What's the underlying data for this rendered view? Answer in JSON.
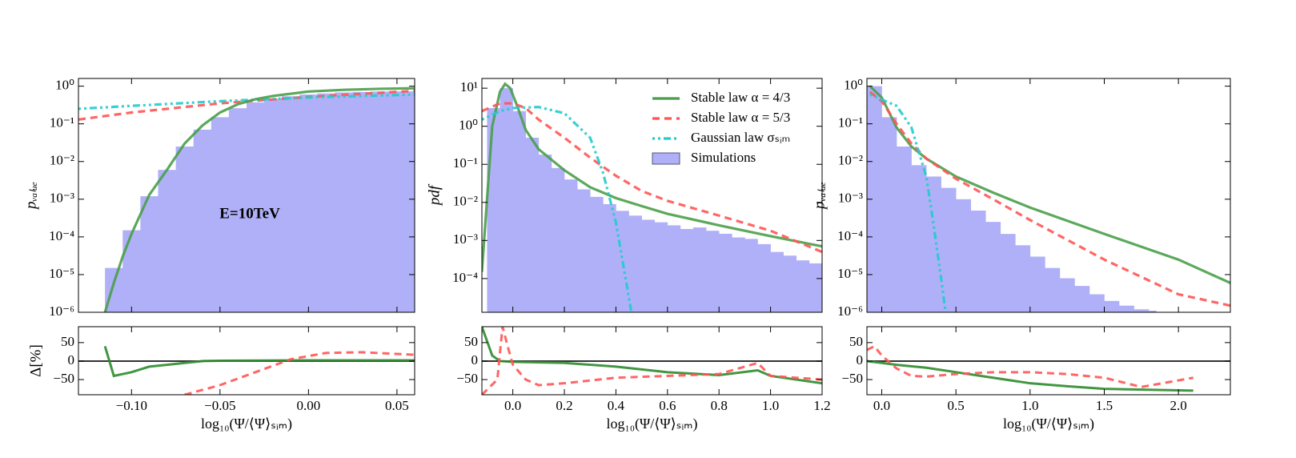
{
  "chart_data": [
    {
      "type": "line",
      "log_y": true,
      "ylabel": "pᵥₐₗᵤₑ",
      "annotation": "E=10TeV",
      "xlim": [
        -0.13,
        0.06
      ],
      "ylim": [
        1e-06,
        1.6
      ],
      "yticks": [
        {
          "value": 1e-06,
          "label": "10⁻⁶"
        },
        {
          "value": 1e-05,
          "label": "10⁻⁵"
        },
        {
          "value": 0.0001,
          "label": "10⁻⁴"
        },
        {
          "value": 0.001,
          "label": "10⁻³"
        },
        {
          "value": 0.01,
          "label": "10⁻²"
        },
        {
          "value": 0.1,
          "label": "10⁻¹"
        },
        {
          "value": 1,
          "label": "10⁰"
        }
      ],
      "histogram": {
        "color": "#b0b0f8",
        "bins": [
          -0.115,
          -0.105,
          -0.095,
          -0.085,
          -0.075,
          -0.065,
          -0.055,
          -0.045,
          -0.035,
          -0.025,
          -0.015,
          -0.005,
          0.005,
          0.015,
          0.025,
          0.035,
          0.045,
          0.06
        ],
        "values": [
          1.5e-05,
          0.00015,
          0.0012,
          0.006,
          0.025,
          0.07,
          0.15,
          0.26,
          0.37,
          0.46,
          0.54,
          0.6,
          0.64,
          0.68,
          0.7,
          0.72,
          0.73
        ]
      },
      "series": [
        {
          "color": "#ff5555",
          "linestyle": "dashed",
          "x": [
            -0.13,
            -0.1,
            -0.05,
            0,
            0.06
          ],
          "values": [
            0.13,
            0.2,
            0.35,
            0.52,
            0.75
          ]
        },
        {
          "color": "#22cccc",
          "linestyle": "dashdot",
          "x": [
            -0.13,
            -0.1,
            -0.05,
            0,
            0.06
          ],
          "values": [
            0.25,
            0.3,
            0.4,
            0.5,
            0.6
          ]
        },
        {
          "color": "#4a9e4a",
          "linestyle": "solid",
          "x": [
            -0.115,
            -0.11,
            -0.105,
            -0.1,
            -0.09,
            -0.08,
            -0.07,
            -0.06,
            -0.05,
            -0.04,
            -0.03,
            -0.02,
            0,
            0.02,
            0.04,
            0.06
          ],
          "values": [
            1e-06,
            6e-06,
            3e-05,
            0.00012,
            0.0013,
            0.006,
            0.03,
            0.09,
            0.2,
            0.33,
            0.45,
            0.55,
            0.72,
            0.8,
            0.85,
            0.88
          ]
        }
      ]
    },
    {
      "type": "line",
      "log_y": false,
      "ylabel": "Δ[%]",
      "xlabel": "log₁₀(Ψ/⟨Ψ⟩ₛᵢₘ)",
      "xlim": [
        -0.13,
        0.06
      ],
      "ylim": [
        -91,
        93
      ],
      "xticks": [
        {
          "value": -0.1,
          "label": "−0.10"
        },
        {
          "value": -0.05,
          "label": "−0.05"
        },
        {
          "value": 0,
          "label": "0.00"
        },
        0.05
      ],
      "yticks": [
        {
          "value": -50,
          "label": "−50"
        },
        0,
        50
      ],
      "series": [
        {
          "color": "#2e8b2e",
          "linestyle": "solid",
          "x": [
            -0.115,
            -0.11,
            -0.1,
            -0.09,
            -0.08,
            -0.07,
            -0.06,
            -0.05,
            0,
            0.06
          ],
          "values": [
            40,
            -40,
            -30,
            -15,
            -10,
            -5,
            0,
            1,
            2,
            2
          ]
        },
        {
          "color": "#ff5555",
          "linestyle": "dashed",
          "x": [
            -0.07,
            -0.05,
            -0.03,
            -0.01,
            0.01,
            0.03,
            0.06
          ],
          "values": [
            -91,
            -65,
            -30,
            5,
            22,
            24,
            17
          ]
        }
      ]
    },
    {
      "type": "line",
      "log_y": true,
      "ylabel": "pdf",
      "legend": "upper right",
      "xlim": [
        -0.12,
        1.2
      ],
      "ylim": [
        1.3e-05,
        18
      ],
      "yticks": [
        {
          "value": 0.0001,
          "label": "10⁻⁴"
        },
        {
          "value": 0.001,
          "label": "10⁻³"
        },
        {
          "value": 0.01,
          "label": "10⁻²"
        },
        {
          "value": 0.1,
          "label": "10⁻¹"
        },
        {
          "value": 1,
          "label": "10⁰"
        },
        {
          "value": 10,
          "label": "10¹"
        }
      ],
      "histogram": {
        "name": "Simulations",
        "color": "#b0b0f8",
        "bins": [
          -0.1,
          -0.05,
          0,
          0.05,
          0.1,
          0.15,
          0.2,
          0.25,
          0.3,
          0.35,
          0.4,
          0.45,
          0.5,
          0.55,
          0.6,
          0.65,
          0.7,
          0.75,
          0.8,
          0.85,
          0.9,
          0.95,
          1.0,
          1.05,
          1.1,
          1.15,
          1.2
        ],
        "values": [
          3,
          10,
          2.5,
          0.5,
          0.18,
          0.08,
          0.04,
          0.022,
          0.014,
          0.009,
          0.006,
          0.0045,
          0.0035,
          0.003,
          0.0025,
          0.002,
          0.0022,
          0.0018,
          0.0015,
          0.0012,
          0.0011,
          0.0008,
          0.0005,
          0.0004,
          0.0003,
          0.00025
        ]
      },
      "series": [
        {
          "name": "Stable law α = 4/3",
          "color": "#4a9e4a",
          "linestyle": "solid",
          "x": [
            -0.12,
            -0.08,
            -0.05,
            -0.03,
            -0.01,
            0.02,
            0.05,
            0.1,
            0.2,
            0.3,
            0.4,
            0.5,
            0.6,
            0.8,
            1.0,
            1.2
          ],
          "values": [
            0.00015,
            1,
            8,
            13,
            10,
            3,
            0.8,
            0.25,
            0.07,
            0.025,
            0.013,
            0.008,
            0.005,
            0.0025,
            0.0013,
            0.0007
          ]
        },
        {
          "name": "Stable law α = 5/3",
          "color": "#ff5555",
          "linestyle": "dashed",
          "x": [
            -0.12,
            -0.05,
            0,
            0.05,
            0.1,
            0.2,
            0.3,
            0.4,
            0.5,
            0.6,
            0.8,
            1.0,
            1.2
          ],
          "values": [
            2.5,
            4,
            4,
            3,
            1.5,
            0.5,
            0.15,
            0.05,
            0.02,
            0.011,
            0.0045,
            0.0018,
            0.0005
          ]
        },
        {
          "name": "Gaussian law σₛᵢₘ",
          "color": "#22cccc",
          "linestyle": "dashdot",
          "x": [
            -0.12,
            -0.05,
            0,
            0.1,
            0.2,
            0.3,
            0.35,
            0.4,
            0.43,
            0.46
          ],
          "values": [
            1.5,
            2.5,
            3,
            3.2,
            2.2,
            0.5,
            0.06,
            0.003,
            0.0002,
            1.3e-05
          ]
        }
      ]
    },
    {
      "type": "line",
      "log_y": false,
      "xlabel": "log₁₀(Ψ/⟨Ψ⟩ₛᵢₘ)",
      "xlim": [
        -0.12,
        1.2
      ],
      "ylim": [
        -91,
        93
      ],
      "xticks": [
        {
          "value": 0,
          "label": "0.0"
        },
        0.2,
        0.4,
        0.6,
        0.8,
        {
          "value": 1,
          "label": "1.0"
        },
        1.2
      ],
      "yticks": [
        {
          "value": -50,
          "label": "−50"
        },
        0,
        50
      ],
      "series": [
        {
          "color": "#2e8b2e",
          "linestyle": "solid",
          "x": [
            -0.12,
            -0.08,
            -0.05,
            0,
            0.2,
            0.4,
            0.6,
            0.8,
            0.95,
            1.0,
            1.2
          ],
          "values": [
            93,
            15,
            0,
            -2,
            -5,
            -15,
            -30,
            -38,
            -25,
            -40,
            -60
          ]
        },
        {
          "color": "#ff5555",
          "linestyle": "dashed",
          "x": [
            -0.12,
            -0.06,
            -0.04,
            -0.02,
            0,
            0.05,
            0.1,
            0.2,
            0.4,
            0.6,
            0.8,
            0.95,
            1.0,
            1.2
          ],
          "values": [
            -91,
            -50,
            93,
            40,
            -10,
            -50,
            -65,
            -60,
            -45,
            -40,
            -35,
            -5,
            -40,
            -50
          ]
        }
      ]
    },
    {
      "type": "line",
      "log_y": true,
      "ylabel": "pᵥₐₗᵤₑ",
      "xlim": [
        -0.1,
        2.35
      ],
      "ylim": [
        1e-06,
        1.6
      ],
      "yticks": [
        {
          "value": 1e-06,
          "label": "10⁻⁶"
        },
        {
          "value": 1e-05,
          "label": "10⁻⁵"
        },
        {
          "value": 0.0001,
          "label": "10⁻⁴"
        },
        {
          "value": 0.001,
          "label": "10⁻³"
        },
        {
          "value": 0.01,
          "label": "10⁻²"
        },
        {
          "value": 0.1,
          "label": "10⁻¹"
        },
        {
          "value": 1,
          "label": "10⁰"
        }
      ],
      "histogram": {
        "color": "#b0b0f8",
        "bins": [
          -0.1,
          0,
          0.1,
          0.2,
          0.3,
          0.4,
          0.5,
          0.6,
          0.7,
          0.8,
          0.9,
          1.0,
          1.1,
          1.2,
          1.3,
          1.4,
          1.5,
          1.6,
          1.7,
          1.8,
          1.85
        ],
        "values": [
          1,
          0.15,
          0.025,
          0.008,
          0.004,
          0.002,
          0.001,
          0.0005,
          0.00025,
          0.00012,
          6e-05,
          3e-05,
          1.5e-05,
          8e-06,
          5e-06,
          3e-06,
          2e-06,
          1.5e-06,
          1.2e-06,
          1.1e-06
        ]
      },
      "series": [
        {
          "color": "#4a9e4a",
          "linestyle": "solid",
          "x": [
            -0.08,
            0,
            0.1,
            0.2,
            0.3,
            0.5,
            0.75,
            1.0,
            1.5,
            2.0,
            2.35
          ],
          "values": [
            1,
            0.5,
            0.08,
            0.025,
            0.012,
            0.004,
            0.0015,
            0.0006,
            0.00012,
            2.5e-05,
            6e-06
          ]
        },
        {
          "color": "#ff5555",
          "linestyle": "dashed",
          "x": [
            -0.08,
            0,
            0.1,
            0.2,
            0.3,
            0.5,
            0.75,
            1.0,
            1.5,
            2.0,
            2.35
          ],
          "values": [
            0.7,
            0.4,
            0.1,
            0.03,
            0.012,
            0.0035,
            0.001,
            0.00028,
            2.5e-05,
            3e-06,
            1.5e-06
          ]
        },
        {
          "color": "#22cccc",
          "linestyle": "dashdot",
          "x": [
            -0.08,
            0.1,
            0.2,
            0.3,
            0.35,
            0.4,
            0.43
          ],
          "values": [
            0.6,
            0.3,
            0.08,
            0.004,
            0.0002,
            8e-06,
            1e-06
          ]
        }
      ]
    },
    {
      "type": "line",
      "log_y": false,
      "xlabel": "log₁₀(Ψ/⟨Ψ⟩ₛᵢₘ)",
      "xlim": [
        -0.1,
        2.35
      ],
      "ylim": [
        -91,
        93
      ],
      "xticks": [
        {
          "value": 0,
          "label": "0.0"
        },
        0.5,
        {
          "value": 1,
          "label": "1.0"
        },
        1.5,
        {
          "value": 2,
          "label": "2.0"
        }
      ],
      "yticks": [
        {
          "value": -50,
          "label": "−50"
        },
        0,
        50
      ],
      "series": [
        {
          "color": "#2e8b2e",
          "linestyle": "solid",
          "x": [
            -0.1,
            0,
            0.1,
            0.3,
            0.5,
            0.75,
            1.0,
            1.25,
            1.5,
            2.1
          ],
          "values": [
            0,
            -5,
            -10,
            -18,
            -30,
            -45,
            -60,
            -68,
            -75,
            -80
          ]
        },
        {
          "color": "#ff5555",
          "linestyle": "dashed",
          "x": [
            -0.1,
            -0.05,
            0,
            0.1,
            0.2,
            0.3,
            0.5,
            0.75,
            1.0,
            1.25,
            1.5,
            1.75,
            2.1
          ],
          "values": [
            30,
            40,
            15,
            -20,
            -40,
            -42,
            -35,
            -30,
            -30,
            -35,
            -45,
            -70,
            -45
          ]
        }
      ]
    }
  ]
}
